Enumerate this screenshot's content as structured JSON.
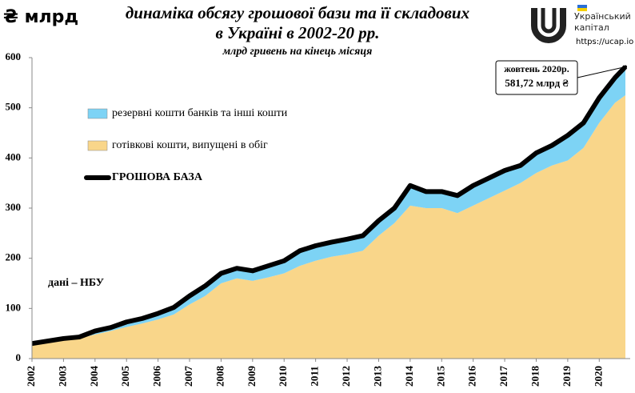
{
  "chart_data": {
    "type": "stacked_area_line",
    "title": "динаміка обсягу грошової бази та її складових",
    "title_line2": "в Україні в 2002-20 рр.",
    "subtitle": "млрд гривень на кінець місяця",
    "y_unit": "₴ млрд",
    "source": "дані – НБУ",
    "logo_text": "Український капітал",
    "logo_url": "https://ucap.io",
    "annotation": {
      "date": "жовтень 2020р.",
      "label": "581,72 млрд ₴",
      "x": 2020.83,
      "value": 581.72
    },
    "x": [
      2002,
      2002.5,
      2003,
      2003.5,
      2004,
      2004.5,
      2005,
      2005.5,
      2006,
      2006.5,
      2007,
      2007.5,
      2008,
      2008.5,
      2009,
      2009.5,
      2010,
      2010.5,
      2011,
      2011.5,
      2012,
      2012.5,
      2013,
      2013.5,
      2014,
      2014.5,
      2015,
      2015.5,
      2016,
      2016.5,
      2017,
      2017.5,
      2018,
      2018.5,
      2019,
      2019.5,
      2020,
      2020.5,
      2020.83
    ],
    "series": [
      {
        "name": "готівкові кошти, випущені в обіг",
        "color": "#f9d68a",
        "kind": "area",
        "values": [
          28,
          32,
          37,
          40,
          48,
          55,
          63,
          70,
          78,
          88,
          108,
          125,
          150,
          160,
          155,
          162,
          170,
          185,
          195,
          203,
          208,
          215,
          245,
          270,
          305,
          300,
          300,
          290,
          305,
          320,
          335,
          350,
          370,
          385,
          395,
          420,
          470,
          510,
          525
        ]
      },
      {
        "name": "резервні кошти банків та інші кошти",
        "color": "#7dd3f5",
        "kind": "area",
        "values": [
          2,
          3,
          3,
          3,
          7,
          7,
          10,
          10,
          12,
          14,
          17,
          20,
          20,
          20,
          20,
          23,
          25,
          30,
          30,
          29,
          30,
          30,
          30,
          30,
          40,
          33,
          33,
          35,
          40,
          40,
          40,
          35,
          40,
          40,
          50,
          50,
          50,
          50,
          56.72
        ]
      },
      {
        "name": "ГРОШОВА БАЗА",
        "color": "#000000",
        "kind": "line",
        "values": [
          30,
          35,
          40,
          43,
          55,
          62,
          73,
          80,
          90,
          102,
          125,
          145,
          170,
          180,
          175,
          185,
          195,
          215,
          225,
          232,
          238,
          245,
          275,
          300,
          345,
          333,
          333,
          325,
          345,
          360,
          375,
          385,
          410,
          425,
          445,
          470,
          520,
          560,
          581.72
        ]
      }
    ],
    "xlim": [
      2002,
      2020.83
    ],
    "xticks": [
      2002,
      2003,
      2004,
      2005,
      2006,
      2007,
      2008,
      2009,
      2010,
      2011,
      2012,
      2013,
      2014,
      2015,
      2016,
      2017,
      2018,
      2019,
      2020
    ],
    "ylim": [
      0,
      600
    ],
    "yticks": [
      0,
      100,
      200,
      300,
      400,
      500,
      600
    ],
    "legend": "upper left"
  }
}
